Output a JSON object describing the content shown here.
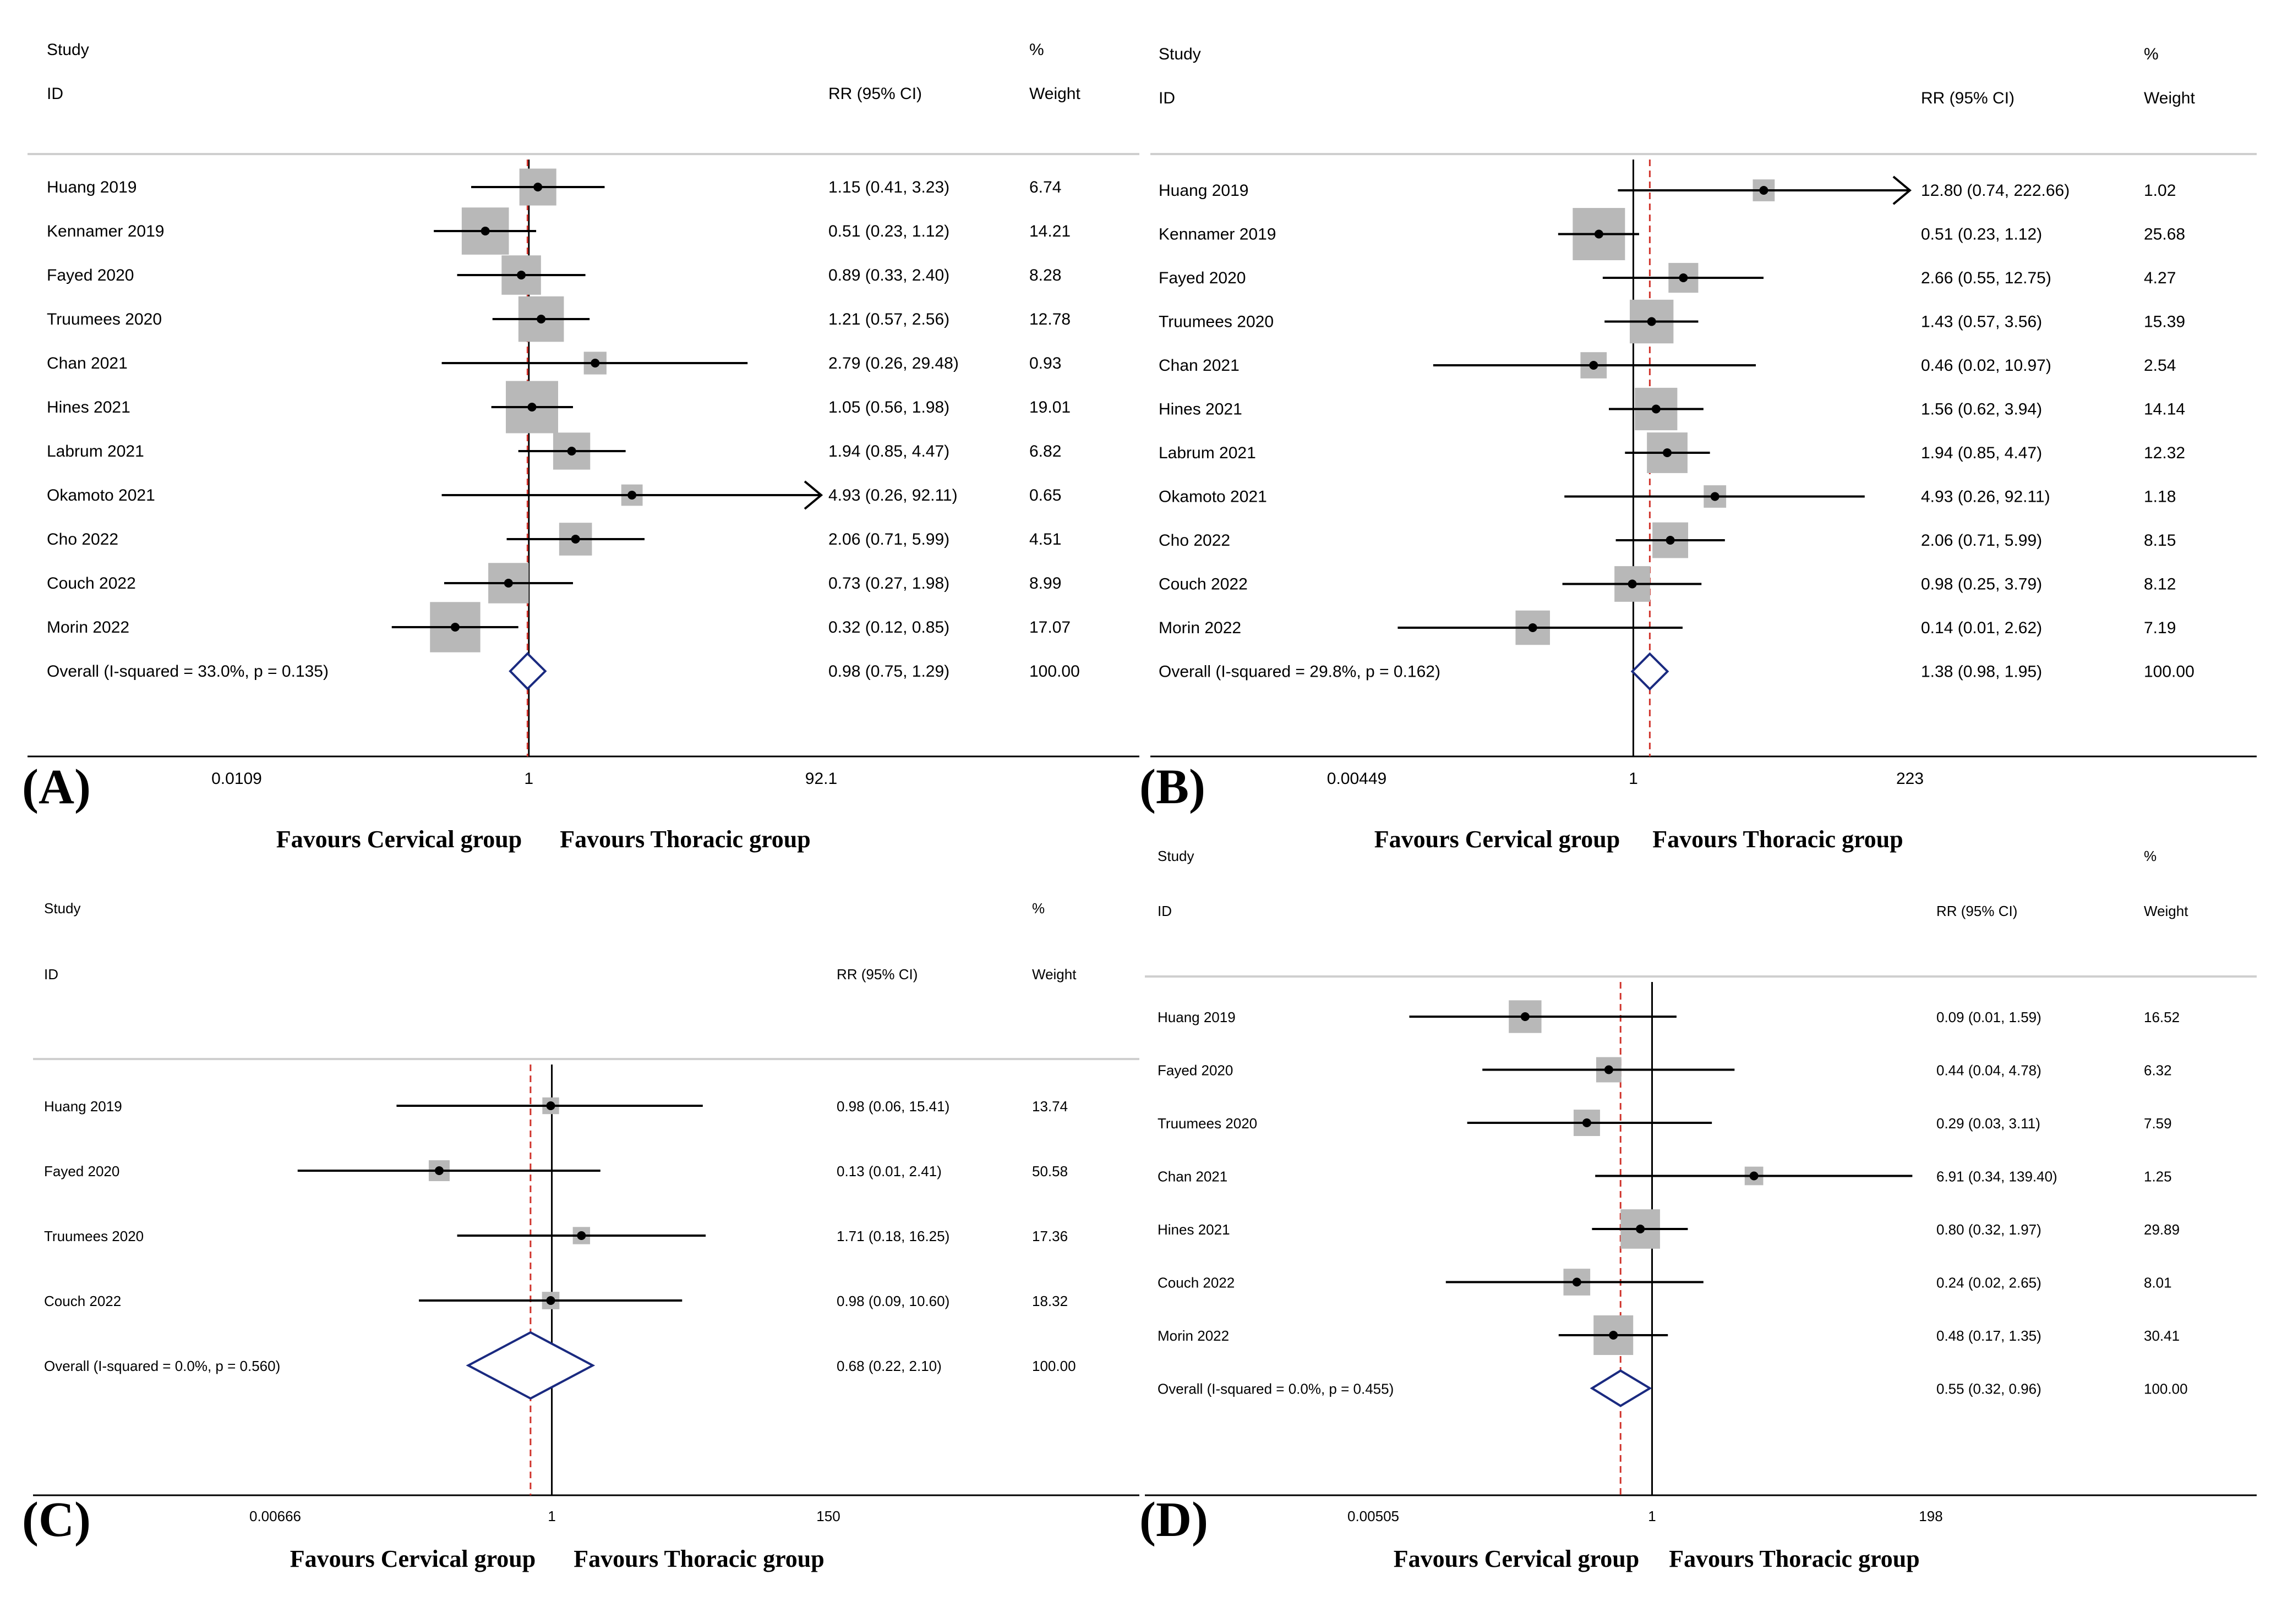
{
  "chart_data": [
    {
      "panel": "(A)",
      "type": "forest",
      "header": {
        "study": "Study",
        "id": "ID",
        "rr": "RR (95% CI)",
        "pct": "%",
        "weight": "Weight"
      },
      "log_axis": {
        "min": 0.0109,
        "max": 92.1,
        "ticks": [
          "0.0109",
          "1",
          "92.1"
        ]
      },
      "pooled_estimate": 0.98,
      "favours_left": "Favours Cervical group",
      "favours_right": "Favours Thoracic group",
      "studies": [
        {
          "name": "Huang 2019",
          "rr": 1.15,
          "lo": 0.41,
          "hi": 3.23,
          "ci_text": "1.15 (0.41, 3.23)",
          "weight": "6.74"
        },
        {
          "name": "Kennamer 2019",
          "rr": 0.51,
          "lo": 0.23,
          "hi": 1.12,
          "ci_text": "0.51 (0.23, 1.12)",
          "weight": "14.21"
        },
        {
          "name": "Fayed 2020",
          "rr": 0.89,
          "lo": 0.33,
          "hi": 2.4,
          "ci_text": "0.89 (0.33, 2.40)",
          "weight": "8.28"
        },
        {
          "name": "Truumees 2020",
          "rr": 1.21,
          "lo": 0.57,
          "hi": 2.56,
          "ci_text": "1.21 (0.57, 2.56)",
          "weight": "12.78"
        },
        {
          "name": "Chan 2021",
          "rr": 2.79,
          "lo": 0.26,
          "hi": 29.48,
          "ci_text": "2.79 (0.26, 29.48)",
          "weight": "0.93"
        },
        {
          "name": "Hines 2021",
          "rr": 1.05,
          "lo": 0.56,
          "hi": 1.98,
          "ci_text": "1.05 (0.56, 1.98)",
          "weight": "19.01"
        },
        {
          "name": "Labrum 2021",
          "rr": 1.94,
          "lo": 0.85,
          "hi": 4.47,
          "ci_text": "1.94 (0.85, 4.47)",
          "weight": "6.82"
        },
        {
          "name": "Okamoto 2021",
          "rr": 4.93,
          "lo": 0.26,
          "hi": 92.11,
          "ci_text": "4.93 (0.26, 92.11)",
          "weight": "0.65"
        },
        {
          "name": "Cho 2022",
          "rr": 2.06,
          "lo": 0.71,
          "hi": 5.99,
          "ci_text": "2.06 (0.71, 5.99)",
          "weight": "4.51"
        },
        {
          "name": "Couch 2022",
          "rr": 0.73,
          "lo": 0.27,
          "hi": 1.98,
          "ci_text": "0.73 (0.27, 1.98)",
          "weight": "8.99"
        },
        {
          "name": "Morin 2022",
          "rr": 0.32,
          "lo": 0.12,
          "hi": 0.85,
          "ci_text": "0.32 (0.12, 0.85)",
          "weight": "17.07"
        }
      ],
      "overall": {
        "label": "Overall  (I-squared = 33.0%, p = 0.135)",
        "rr": 0.98,
        "lo": 0.75,
        "hi": 1.29,
        "ci_text": "0.98 (0.75, 1.29)",
        "weight": "100.00"
      }
    },
    {
      "panel": "(B)",
      "type": "forest",
      "header": {
        "study": "Study",
        "id": "ID",
        "rr": "RR (95% CI)",
        "pct": "%",
        "weight": "Weight"
      },
      "log_axis": {
        "min": 0.00449,
        "max": 223,
        "ticks": [
          "0.00449",
          "1",
          "223"
        ]
      },
      "pooled_estimate": 1.38,
      "favours_left": "Favours Cervical group",
      "favours_right": "Favours Thoracic group",
      "studies": [
        {
          "name": "Huang 2019",
          "rr": 12.8,
          "lo": 0.74,
          "hi": 222.66,
          "ci_text": "12.80 (0.74, 222.66)",
          "weight": "1.02"
        },
        {
          "name": "Kennamer 2019",
          "rr": 0.51,
          "lo": 0.23,
          "hi": 1.12,
          "ci_text": "0.51 (0.23, 1.12)",
          "weight": "25.68"
        },
        {
          "name": "Fayed 2020",
          "rr": 2.66,
          "lo": 0.55,
          "hi": 12.75,
          "ci_text": "2.66 (0.55, 12.75)",
          "weight": "4.27"
        },
        {
          "name": "Truumees 2020",
          "rr": 1.43,
          "lo": 0.57,
          "hi": 3.56,
          "ci_text": "1.43 (0.57, 3.56)",
          "weight": "15.39"
        },
        {
          "name": "Chan 2021",
          "rr": 0.46,
          "lo": 0.02,
          "hi": 10.97,
          "ci_text": "0.46 (0.02, 10.97)",
          "weight": "2.54"
        },
        {
          "name": "Hines 2021",
          "rr": 1.56,
          "lo": 0.62,
          "hi": 3.94,
          "ci_text": "1.56 (0.62, 3.94)",
          "weight": "14.14"
        },
        {
          "name": "Labrum 2021",
          "rr": 1.94,
          "lo": 0.85,
          "hi": 4.47,
          "ci_text": "1.94 (0.85, 4.47)",
          "weight": "12.32"
        },
        {
          "name": "Okamoto 2021",
          "rr": 4.93,
          "lo": 0.26,
          "hi": 92.11,
          "ci_text": "4.93 (0.26, 92.11)",
          "weight": "1.18"
        },
        {
          "name": "Cho 2022",
          "rr": 2.06,
          "lo": 0.71,
          "hi": 5.99,
          "ci_text": "2.06 (0.71, 5.99)",
          "weight": "8.15"
        },
        {
          "name": "Couch 2022",
          "rr": 0.98,
          "lo": 0.25,
          "hi": 3.79,
          "ci_text": "0.98 (0.25, 3.79)",
          "weight": "8.12"
        },
        {
          "name": "Morin 2022",
          "rr": 0.14,
          "lo": 0.01,
          "hi": 2.62,
          "ci_text": "0.14 (0.01, 2.62)",
          "weight": "7.19"
        }
      ],
      "overall": {
        "label": "Overall  (I-squared = 29.8%, p = 0.162)",
        "rr": 1.38,
        "lo": 0.98,
        "hi": 1.95,
        "ci_text": "1.38 (0.98, 1.95)",
        "weight": "100.00"
      }
    },
    {
      "panel": "(C)",
      "type": "forest",
      "header": {
        "study": "Study",
        "id": "ID",
        "rr": "RR (95% CI)",
        "pct": "%",
        "weight": "Weight"
      },
      "log_axis": {
        "min": 0.00666,
        "max": 150,
        "ticks": [
          "0.00666",
          "1",
          "150"
        ]
      },
      "pooled_estimate": 0.68,
      "favours_left": "Favours Cervical group",
      "favours_right": "Favours Thoracic group",
      "studies": [
        {
          "name": "Huang 2019",
          "rr": 0.98,
          "lo": 0.06,
          "hi": 15.41,
          "ci_text": "0.98 (0.06, 15.41)",
          "weight": "13.74"
        },
        {
          "name": "Fayed 2020",
          "rr": 0.13,
          "lo": 0.01,
          "hi": 2.41,
          "ci_text": "0.13 (0.01, 2.41)",
          "weight": "50.58"
        },
        {
          "name": "Truumees 2020",
          "rr": 1.71,
          "lo": 0.18,
          "hi": 16.25,
          "ci_text": "1.71 (0.18, 16.25)",
          "weight": "17.36"
        },
        {
          "name": "Couch 2022",
          "rr": 0.98,
          "lo": 0.09,
          "hi": 10.6,
          "ci_text": "0.98 (0.09, 10.60)",
          "weight": "18.32"
        }
      ],
      "overall": {
        "label": "Overall  (I-squared = 0.0%, p = 0.560)",
        "rr": 0.68,
        "lo": 0.22,
        "hi": 2.1,
        "ci_text": "0.68 (0.22, 2.10)",
        "weight": "100.00"
      }
    },
    {
      "panel": "(D)",
      "type": "forest",
      "header": {
        "study": "Study",
        "id": "ID",
        "rr": "RR (95% CI)",
        "pct": "%",
        "weight": "Weight"
      },
      "log_axis": {
        "min": 0.00505,
        "max": 198,
        "ticks": [
          "0.00505",
          "1",
          "198"
        ]
      },
      "pooled_estimate": 0.55,
      "favours_left": "Favours Cervical group",
      "favours_right": "Favours Thoracic group",
      "studies": [
        {
          "name": "Huang 2019",
          "rr": 0.09,
          "lo": 0.01,
          "hi": 1.59,
          "ci_text": "0.09 (0.01, 1.59)",
          "weight": "16.52"
        },
        {
          "name": "Fayed 2020",
          "rr": 0.44,
          "lo": 0.04,
          "hi": 4.78,
          "ci_text": "0.44 (0.04, 4.78)",
          "weight": "6.32"
        },
        {
          "name": "Truumees 2020",
          "rr": 0.29,
          "lo": 0.03,
          "hi": 3.11,
          "ci_text": "0.29 (0.03, 3.11)",
          "weight": "7.59"
        },
        {
          "name": "Chan 2021",
          "rr": 6.91,
          "lo": 0.34,
          "hi": 139.4,
          "ci_text": "6.91 (0.34, 139.40)",
          "weight": "1.25"
        },
        {
          "name": "Hines 2021",
          "rr": 0.8,
          "lo": 0.32,
          "hi": 1.97,
          "ci_text": "0.80 (0.32, 1.97)",
          "weight": "29.89"
        },
        {
          "name": "Couch 2022",
          "rr": 0.24,
          "lo": 0.02,
          "hi": 2.65,
          "ci_text": "0.24 (0.02, 2.65)",
          "weight": "8.01"
        },
        {
          "name": "Morin 2022",
          "rr": 0.48,
          "lo": 0.17,
          "hi": 1.35,
          "ci_text": "0.48 (0.17, 1.35)",
          "weight": "30.41"
        }
      ],
      "overall": {
        "label": "Overall  (I-squared = 0.0%, p = 0.455)",
        "rr": 0.55,
        "lo": 0.32,
        "hi": 0.96,
        "ci_text": "0.55 (0.32, 0.96)",
        "weight": "100.00"
      }
    }
  ],
  "colors": {
    "box": "#b8b8b8",
    "line": "#000000",
    "diamond": "#1a2a80",
    "pooled_line": "#d0342c",
    "rule": "#cfcfcf"
  }
}
